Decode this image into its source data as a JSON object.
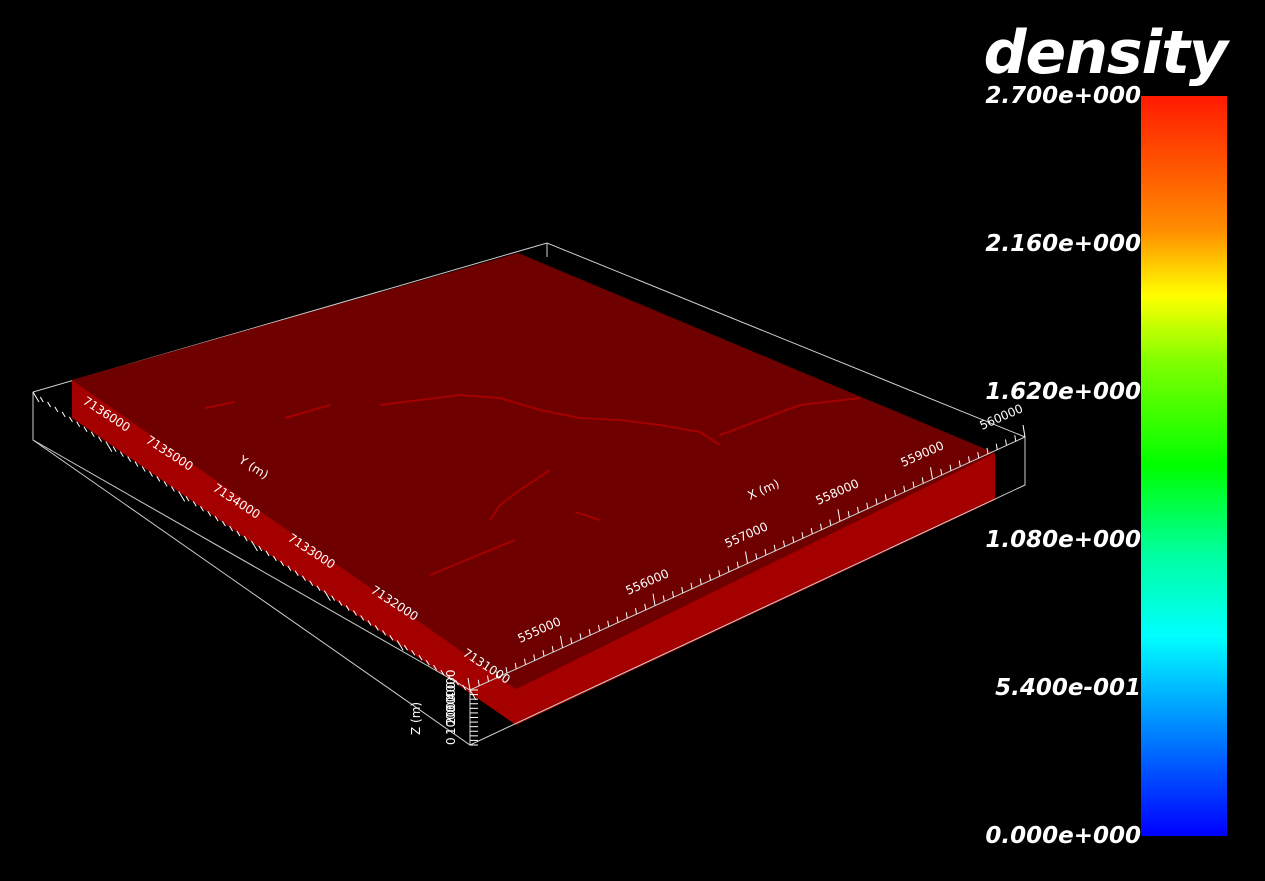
{
  "chart_data": {
    "type": "volume",
    "colorbar": {
      "title": "density",
      "min": 0.0,
      "max": 2.7,
      "ticks": [
        "2.700e+000",
        "2.160e+000",
        "1.620e+000",
        "1.080e+000",
        "5.400e-001",
        "0.000e+000"
      ],
      "colormap": [
        "#ff1a00",
        "#ff8c00",
        "#ffff00",
        "#7fff00",
        "#00ff00",
        "#00ffa0",
        "#00ffff",
        "#00a8ff",
        "#0000ff"
      ]
    },
    "axes": {
      "x": {
        "label": "X (m)",
        "ticks": [
          "555000",
          "556000",
          "557000",
          "558000",
          "559000",
          "560000"
        ]
      },
      "y": {
        "label": "Y (m)",
        "ticks": [
          "7136000",
          "7135000",
          "7134000",
          "7133000",
          "7132000",
          "7131000"
        ]
      },
      "z": {
        "label": "Z (m)",
        "ticks": [
          "0",
          "1000",
          "2000",
          "3000",
          "4000"
        ]
      }
    },
    "volume_color": "#6e0000",
    "side_color": "#a50000"
  }
}
